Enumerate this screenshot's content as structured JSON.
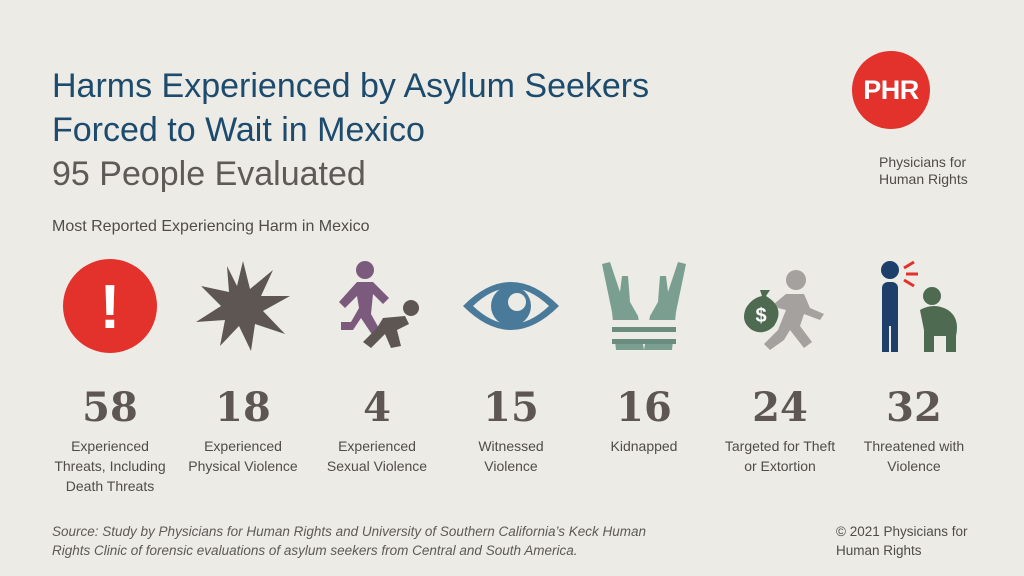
{
  "title": {
    "line1": "Harms Experienced by Asylum Seekers",
    "line2": "Forced to Wait in Mexico",
    "line3": "95 People Evaluated"
  },
  "subtitle": "Most Reported Experiencing Harm in Mexico",
  "logo": {
    "abbr": "PHR",
    "name_line1": "Physicians for",
    "name_line2": "Human Rights",
    "color": "#e3312c"
  },
  "colors": {
    "title": "#1d4b6e",
    "alert": "#e3312c",
    "dark_gray": "#5d5653",
    "purple": "#7c5a7e",
    "blue": "#4a7a9a",
    "sage": "#7a9f91",
    "navy": "#1d3f6a",
    "green": "#4e6b52",
    "light_gray": "#a5a19e"
  },
  "chart_data": {
    "type": "table",
    "categories": [
      "Experienced Threats, Including Death Threats",
      "Experienced Physical Violence",
      "Experienced Sexual Violence",
      "Witnessed Violence",
      "Kidnapped",
      "Targeted for Theft or Extortion",
      "Threatened with Violence"
    ],
    "values": [
      58,
      18,
      4,
      15,
      16,
      24,
      32
    ],
    "icons": [
      "alert-icon",
      "explosion-icon",
      "assault-icon",
      "eye-icon",
      "bound-hands-icon",
      "money-bag-thief-icon",
      "threatened-person-icon"
    ]
  },
  "stats": [
    {
      "value": "58",
      "label_lines": [
        "Experienced",
        "Threats, Including",
        "Death Threats"
      ]
    },
    {
      "value": "18",
      "label_lines": [
        "Experienced",
        "Physical Violence"
      ]
    },
    {
      "value": "4",
      "label_lines": [
        "Experienced",
        "Sexual Violence"
      ]
    },
    {
      "value": "15",
      "label_lines": [
        "Witnessed",
        "Violence"
      ]
    },
    {
      "value": "16",
      "label_lines": [
        "Kidnapped"
      ]
    },
    {
      "value": "24",
      "label_lines": [
        "Targeted for Theft",
        "or Extortion"
      ]
    },
    {
      "value": "32",
      "label_lines": [
        "Threatened with",
        "Violence"
      ]
    }
  ],
  "icon_text": {
    "alert_symbol": "!",
    "money_symbol": "$"
  },
  "source": {
    "line1": "Source: Study by Physicians for Human Rights and University of Southern California’s Keck Human",
    "line2": "Rights Clinic of forensic evaluations of asylum seekers from Central and South America."
  },
  "copyright": {
    "line1": "© 2021 Physicians for",
    "line2": "Human Rights"
  }
}
